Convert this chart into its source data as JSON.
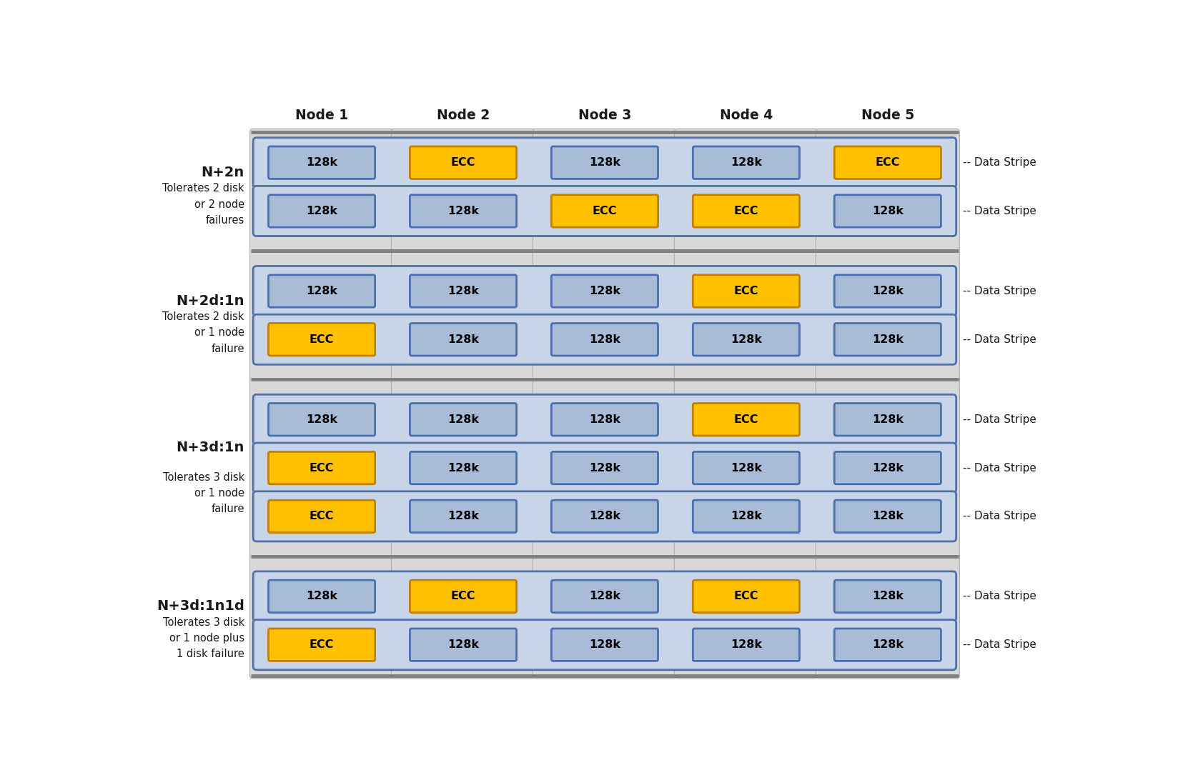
{
  "background_color": "#ffffff",
  "node_headers": [
    "Node 1",
    "Node 2",
    "Node 3",
    "Node 4",
    "Node 5"
  ],
  "separator_color": "#808080",
  "node_col_bg": "#d8d8d8",
  "row_stripe_bg": "#c8d4e8",
  "row_stripe_border": "#5070a8",
  "cell_128k_bg": "#a8bcd8",
  "cell_128k_border": "#4a70b0",
  "cell_ecc_bg": "#ffc000",
  "cell_ecc_border": "#c08000",
  "cell_text_color": "#000000",
  "label_bold_color": "#1a1a1a",
  "label_sub_color": "#1a1a1a",
  "data_stripe_color": "#1a1a1a",
  "sections": [
    {
      "label": "N+2n",
      "sublabel": "Tolerates 2 disk\nor 2 node\nfailures",
      "rows": [
        [
          "128k",
          "ECC",
          "128k",
          "128k",
          "ECC"
        ],
        [
          "128k",
          "128k",
          "ECC",
          "ECC",
          "128k"
        ]
      ],
      "data_stripe_row": -1
    },
    {
      "label": "N+2d:1n",
      "sublabel": "Tolerates 2 disk\nor 1 node\nfailure",
      "rows": [
        [
          "128k",
          "128k",
          "128k",
          "ECC",
          "128k"
        ],
        [
          "ECC",
          "128k",
          "128k",
          "128k",
          "128k"
        ]
      ],
      "data_stripe_row": -1
    },
    {
      "label": "N+3d:1n",
      "sublabel": "Tolerates 3 disk\nor 1 node\nfailure",
      "rows": [
        [
          "128k",
          "128k",
          "128k",
          "ECC",
          "128k"
        ],
        [
          "ECC",
          "128k",
          "128k",
          "128k",
          "128k"
        ],
        [
          "ECC",
          "128k",
          "128k",
          "128k",
          "128k"
        ]
      ],
      "data_stripe_row": 1
    },
    {
      "label": "N+3d:1n1d",
      "sublabel": "Tolerates 3 disk\nor 1 node plus\n1 disk failure",
      "rows": [
        [
          "128k",
          "ECC",
          "128k",
          "ECC",
          "128k"
        ],
        [
          "ECC",
          "128k",
          "128k",
          "128k",
          "128k"
        ]
      ],
      "data_stripe_row": -1
    }
  ]
}
